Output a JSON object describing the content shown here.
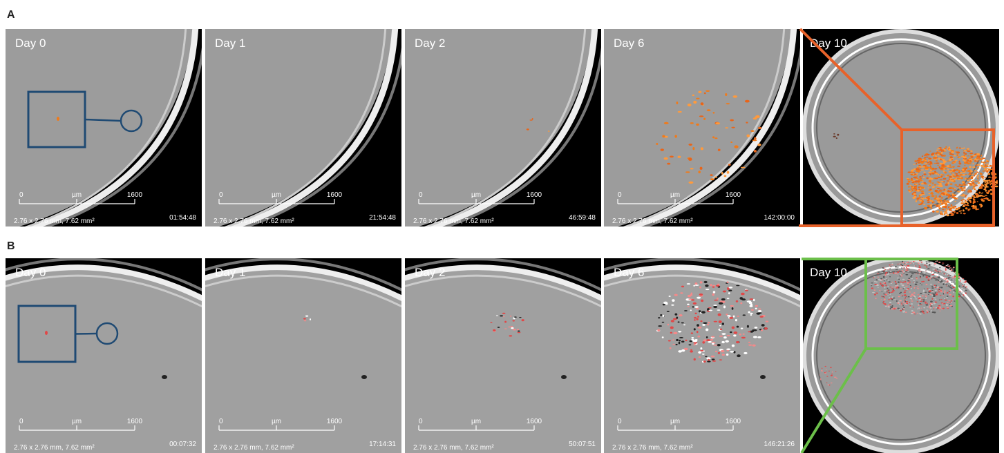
{
  "panels": [
    {
      "label": "A",
      "frames": [
        {
          "day": "Day 0",
          "scale_start": "0",
          "scale_unit": "µm",
          "scale_end": "1600",
          "area": "2.76 x 2.76 mm, 7.62 mm²",
          "time": "01:54:48"
        },
        {
          "day": "Day 1",
          "scale_start": "0",
          "scale_unit": "µm",
          "scale_end": "1600",
          "area": "2.76 x 2.76 mm, 7.62 mm²",
          "time": "21:54:48"
        },
        {
          "day": "Day 2",
          "scale_start": "0",
          "scale_unit": "µm",
          "scale_end": "1600",
          "area": "2.76 x 2.76 mm, 7.62 mm²",
          "time": "46:59:48"
        },
        {
          "day": "Day 6",
          "scale_start": "0",
          "scale_unit": "µm",
          "scale_end": "1600",
          "area": "2.76 x 2.76 mm, 7.62 mm²",
          "time": "142:00:00"
        },
        {
          "day": "Day 10"
        }
      ]
    },
    {
      "label": "B",
      "frames": [
        {
          "day": "Day 0",
          "scale_start": "0",
          "scale_unit": "µm",
          "scale_end": "1600",
          "area": "2.76 x 2.76 mm, 7.62 mm²",
          "time": "00:07:32"
        },
        {
          "day": "Day 1",
          "scale_start": "0",
          "scale_unit": "µm",
          "scale_end": "1600",
          "area": "2.76 x 2.76 mm, 7.62 mm²",
          "time": "17:14:31"
        },
        {
          "day": "Day 2",
          "scale_start": "0",
          "scale_unit": "µm",
          "scale_end": "1600",
          "area": "2.76 x 2.76 mm, 7.62 mm²",
          "time": "50:07:51"
        },
        {
          "day": "Day 6",
          "scale_start": "0",
          "scale_unit": "µm",
          "scale_end": "1600",
          "area": "2.76 x 2.76 mm, 7.62 mm²",
          "time": "146:21:26"
        },
        {
          "day": "Day 10"
        }
      ]
    }
  ]
}
